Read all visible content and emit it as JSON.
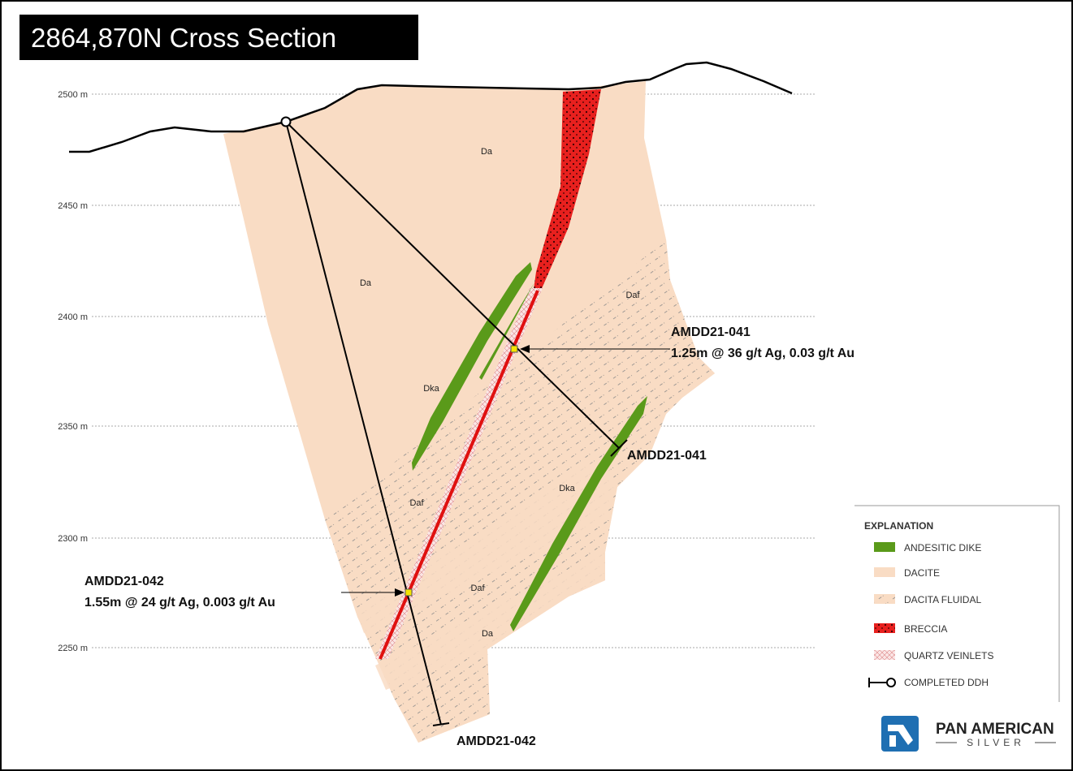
{
  "title": "2864,870N  Cross Section",
  "elevation_labels": [
    "2500 m",
    "2450 m",
    "2400 m",
    "2350 m",
    "2300 m",
    "2250 m"
  ],
  "unit_labels": [
    "Da",
    "Da",
    "Daf",
    "Dka",
    "Daf",
    "Dka",
    "Daf",
    "Da"
  ],
  "drill_holes": [
    {
      "end_label": "AMDD21-041",
      "intercept_title": "AMDD21-041",
      "intercept": "1.25m @ 36 g/t Ag, 0.03 g/t Au"
    },
    {
      "end_label": "AMDD21-042",
      "intercept_title": "AMDD21-042",
      "intercept": "1.55m @ 24 g/t Ag, 0.003 g/t Au"
    }
  ],
  "legend": {
    "title": "EXPLANATION",
    "items": [
      "ANDESITIC  DIKE",
      "DACITE",
      "DACITA  FLUIDAL",
      "BRECCIA",
      "QUARTZ VEINLETS",
      "COMPLETED  DDH"
    ]
  },
  "logo": {
    "name": "PAN AMERICAN",
    "tagline": "SILVER"
  }
}
